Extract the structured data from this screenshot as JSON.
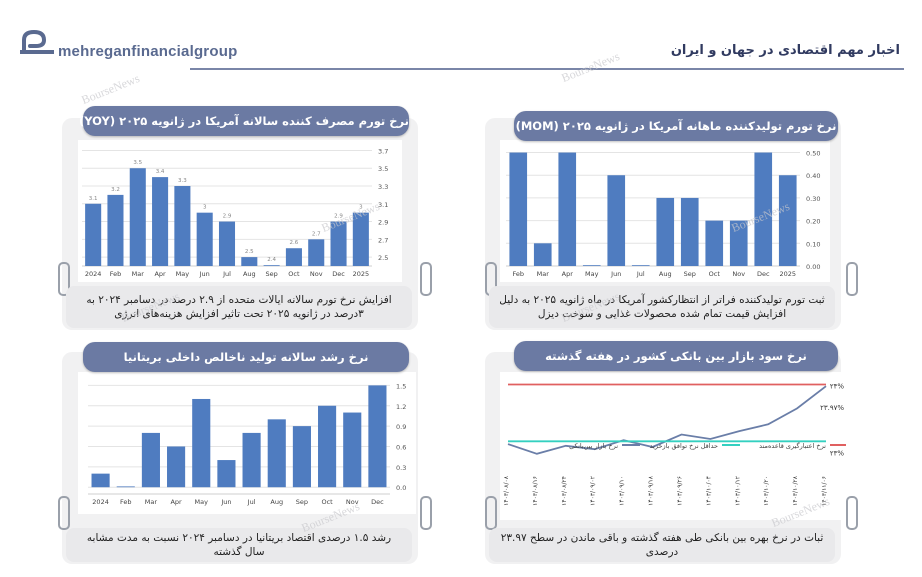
{
  "header": {
    "brand": "mehreganfinancialgroup",
    "title": "اخبار مهم اقتصادی در جهان و ایران",
    "watermark": "BourseNews"
  },
  "panels": {
    "cpi": {
      "title": "نرخ تورم مصرف کننده سالانه آمریکا در ژانویه ۲۰۲۵ (YOY)",
      "description": "افزایش نرخ تورم سالانه ایالات متحده از ۲.۹ درصد در دسامبر ۲۰۲۴ به ۳درصد در ژانویه ۲۰۲۵ تحت تاثیر افزایش هزینه‌های انرژی"
    },
    "ppi": {
      "title": "نرخ تورم تولیدکننده ماهانه آمریکا در ژانویه ۲۰۲۵ (MOM)",
      "description": "ثبت تورم تولیدکننده فراتر از انتظارکشور آمریکا در ماه ژانویه ۲۰۲۵ به دلیل افزایش قیمت تمام شده محصولات غذایی و سوخت دیزل"
    },
    "uk": {
      "title": "نرخ رشد سالانه تولید ناخالص داخلی بریتانیا",
      "description": "رشد ۱.۵ درصدی اقتصاد بریتانیا در دسامبر ۲۰۲۴ نسبت به مدت مشابه سال گذشته"
    },
    "interbank": {
      "title": "نرخ سود بازار بین بانکی کشور در هفته گذشته",
      "description": "ثبات در نرخ بهره بین بانکی طی هفته گذشته و باقی ماندن در سطح ۲۳.۹۷ درصدی"
    }
  },
  "chart_data": [
    {
      "id": "cpi",
      "type": "bar",
      "categories": [
        "2024",
        "Feb",
        "Mar",
        "Apr",
        "May",
        "Jun",
        "Jul",
        "Aug",
        "Sep",
        "Oct",
        "Nov",
        "Dec",
        "2025"
      ],
      "values": [
        3.1,
        3.2,
        3.5,
        3.4,
        3.3,
        3.0,
        2.9,
        2.5,
        2.4,
        2.6,
        2.7,
        2.9,
        3.0
      ],
      "value_labels": [
        "3.1",
        "3.2",
        "3.5",
        "3.4",
        "3.3",
        "3",
        "2.9",
        "2.5",
        "2.4",
        "2.6",
        "2.7",
        "2.9",
        "3"
      ],
      "ylim": [
        2.4,
        3.75
      ],
      "yticks": [
        "3.7",
        "3.5",
        "3.3",
        "3.1",
        "2.9",
        "2.7",
        "2.5"
      ],
      "ytick_values": [
        3.7,
        3.5,
        3.3,
        3.1,
        2.9,
        2.7,
        2.5
      ],
      "color": "#4f7cc0",
      "grid": true
    },
    {
      "id": "ppi",
      "type": "bar",
      "categories": [
        "Feb",
        "Mar",
        "Apr",
        "May",
        "Jun",
        "Jul",
        "Aug",
        "Sep",
        "Oct",
        "Nov",
        "Dec",
        "2025"
      ],
      "values": [
        0.5,
        0.1,
        0.5,
        0.0,
        0.4,
        0.0,
        0.3,
        0.3,
        0.2,
        0.2,
        0.5,
        0.4
      ],
      "ylim": [
        0,
        0.52
      ],
      "yticks": [
        "0.50",
        "0.40",
        "0.30",
        "0.20",
        "0.10",
        "0.00"
      ],
      "ytick_values": [
        0.5,
        0.4,
        0.3,
        0.2,
        0.1,
        0.0
      ],
      "color": "#4f7cc0",
      "grid": true
    },
    {
      "id": "uk",
      "type": "bar",
      "categories": [
        "2024",
        "Feb",
        "Mar",
        "Apr",
        "May",
        "Jun",
        "Jul",
        "Aug",
        "Sep",
        "Oct",
        "Nov",
        "Dec"
      ],
      "values": [
        0.2,
        0.0,
        0.8,
        0.6,
        1.3,
        0.4,
        0.8,
        1.0,
        0.9,
        1.2,
        1.1,
        1.5
      ],
      "ylim": [
        -0.1,
        1.55
      ],
      "yticks": [
        "1.5",
        "1.2",
        "0.9",
        "0.6",
        "0.3",
        "0.0"
      ],
      "ytick_values": [
        1.5,
        1.2,
        0.9,
        0.6,
        0.3,
        0.0
      ],
      "color": "#4f7cc0",
      "grid": true
    },
    {
      "id": "interbank",
      "type": "line",
      "x": [
        "۱۴۰۳/۰۸/۰۸",
        "۱۴۰۳/۰۸/۱۶",
        "۱۴۰۳/۰۸/۲۴",
        "۱۴۰۳/۰۹/۰۲",
        "۱۴۰۳/۰۹/۱۰",
        "۱۴۰۳/۰۹/۱۸",
        "۱۴۰۳/۰۹/۲۶",
        "۱۴۰۳/۱۰/۰۴",
        "۱۴۰۳/۱۰/۱۲",
        "۱۴۰۳/۱۰/۲۰",
        "۱۴۰۳/۱۰/۲۸",
        "۱۴۰۳/۱۱/۰۶"
      ],
      "series": [
        {
          "name": "نرخ بازار بین‌بانکی",
          "color": "#6a7ea8",
          "values": [
            22.95,
            22.78,
            22.92,
            22.86,
            23.02,
            22.9,
            23.12,
            23.04,
            23.18,
            23.3,
            23.58,
            23.97
          ]
        },
        {
          "name": "حداقل نرخ توافق بازخرید",
          "color": "#34d0c0",
          "values": [
            23.0,
            23.0,
            23.0,
            23.0,
            23.0,
            23.0,
            23.0,
            23.0,
            23.0,
            23.0,
            23.0,
            23.0
          ]
        },
        {
          "name": "نرخ اعتبارگیری قاعده‌مند",
          "color": "#e06060",
          "values": [
            24.0,
            24.0,
            24.0,
            24.0,
            24.0,
            24.0,
            24.0,
            24.0,
            24.0,
            24.0,
            24.0,
            24.0
          ]
        }
      ],
      "right_labels": [
        "۲۴%",
        "۲۳.۹۷%",
        "۲۳%"
      ],
      "ylim": [
        22.6,
        24.15
      ]
    }
  ]
}
